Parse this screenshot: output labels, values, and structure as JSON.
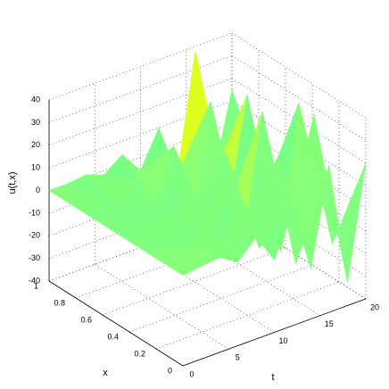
{
  "chart_data": {
    "type": "surface",
    "xlabel": "t",
    "ylabel": "x",
    "zlabel": "u(t,x)",
    "t": [
      0,
      2,
      4,
      6,
      8,
      10,
      12,
      14,
      16,
      18,
      20
    ],
    "x": [
      0,
      0.25,
      0.5,
      0.75,
      1
    ],
    "z": [
      [
        0,
        1,
        2,
        -3,
        5,
        -8,
        12,
        -18,
        25,
        -30,
        20
      ],
      [
        0,
        1,
        -2,
        4,
        -6,
        10,
        -15,
        22,
        -28,
        35,
        -25
      ],
      [
        0,
        -1,
        2,
        -4,
        7,
        -12,
        18,
        -24,
        30,
        -35,
        28
      ],
      [
        0,
        1,
        -3,
        5,
        -9,
        14,
        -20,
        28,
        -22,
        25,
        -20
      ],
      [
        0,
        0,
        1,
        -2,
        4,
        -6,
        10,
        -14,
        38,
        -20,
        15
      ]
    ],
    "tlim": [
      0,
      20
    ],
    "tticks": [
      0,
      5,
      10,
      15,
      20
    ],
    "xlim": [
      0,
      1
    ],
    "xticks": [
      0,
      0.2,
      0.4,
      0.6,
      0.8,
      1
    ],
    "zlim": [
      -40,
      40
    ],
    "zticks": [
      -40,
      -30,
      -20,
      -10,
      0,
      10,
      20,
      30,
      40
    ],
    "colormap": "jet",
    "grid": true
  }
}
